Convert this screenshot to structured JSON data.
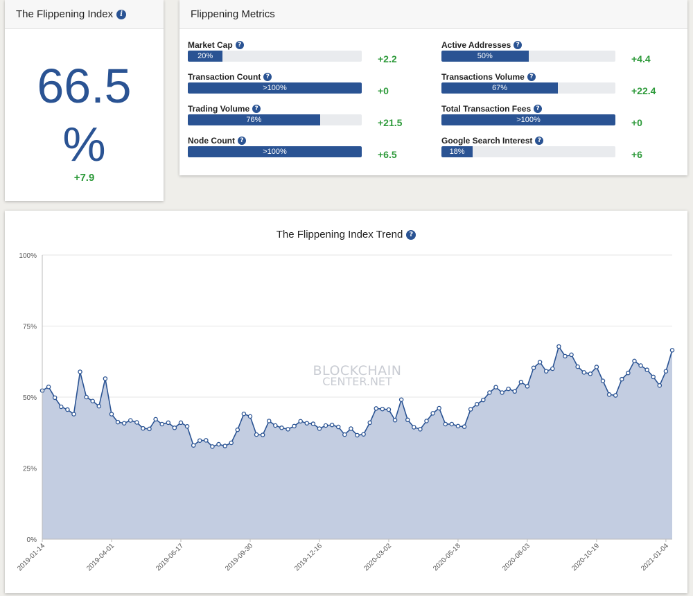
{
  "index_card": {
    "title": "The Flippening Index",
    "value": "66.5",
    "unit": "%",
    "change": "+7.9"
  },
  "metrics_card": {
    "title": "Flippening Metrics",
    "metrics": [
      {
        "label": "Market Cap",
        "bar_text": "20%",
        "fill": 0.2,
        "change": "+2.2"
      },
      {
        "label": "Transaction Count",
        "bar_text": ">100%",
        "fill": 1.0,
        "change": "+0"
      },
      {
        "label": "Trading Volume",
        "bar_text": "76%",
        "fill": 0.76,
        "change": "+21.5"
      },
      {
        "label": "Node Count",
        "bar_text": ">100%",
        "fill": 1.0,
        "change": "+6.5"
      },
      {
        "label": "Active Addresses",
        "bar_text": "50%",
        "fill": 0.5,
        "change": "+4.4"
      },
      {
        "label": "Transactions Volume",
        "bar_text": "67%",
        "fill": 0.67,
        "change": "+22.4"
      },
      {
        "label": "Total Transaction Fees",
        "bar_text": ">100%",
        "fill": 1.0,
        "change": "+0"
      },
      {
        "label": "Google Search Interest",
        "bar_text": "18%",
        "fill": 0.18,
        "change": "+6"
      }
    ]
  },
  "trend_card": {
    "watermark_line1": "BLOCKCHAIN",
    "watermark_line2": "CENTER.NET"
  },
  "colors": {
    "accent": "#2a5393",
    "positive": "#2d9a3a",
    "area_fill": "#c3cde1"
  },
  "chart_data": {
    "type": "area",
    "title": "The Flippening Index Trend",
    "xlabel": "",
    "ylabel": "",
    "ylim": [
      0,
      100
    ],
    "y_ticks": [
      "0%",
      "25%",
      "50%",
      "75%",
      "100%"
    ],
    "x_tick_labels": [
      "2019-01-14",
      "2019-04-01",
      "2019-06-17",
      "2019-09-30",
      "2019-12-16",
      "2020-03-02",
      "2020-05-18",
      "2020-08-03",
      "2020-10-19",
      "2021-01-04"
    ],
    "x_tick_indices": [
      0,
      11,
      22,
      33,
      44,
      55,
      66,
      77,
      88,
      99
    ],
    "grid": true,
    "series": [
      {
        "values": [
          52.3,
          53.6,
          49.8,
          46.6,
          45.6,
          44.0,
          58.9,
          50.0,
          48.6,
          46.8,
          56.5,
          44.0,
          41.2,
          40.8,
          41.8,
          41.1,
          39.0,
          38.8,
          42.2,
          40.5,
          41.0,
          39.2,
          41.0,
          39.7,
          33.0,
          34.7,
          34.8,
          32.6,
          33.4,
          32.8,
          33.9,
          38.5,
          44.1,
          43.2,
          36.8,
          36.7,
          41.6,
          40.0,
          39.2,
          38.7,
          39.8,
          41.5,
          40.8,
          40.6,
          38.9,
          40.0,
          40.2,
          39.5,
          36.8,
          38.9,
          36.6,
          36.9,
          41.0,
          46.0,
          45.8,
          45.6,
          41.9,
          49.1,
          42.0,
          39.4,
          38.7,
          41.6,
          44.3,
          46.1,
          40.5,
          40.5,
          39.8,
          39.6,
          45.7,
          47.5,
          49.0,
          51.6,
          53.5,
          51.6,
          52.9,
          52.0,
          55.3,
          53.8,
          60.3,
          62.3,
          59.1,
          60.0,
          67.8,
          64.4,
          64.9,
          60.7,
          58.7,
          58.2,
          60.6,
          55.7,
          50.9,
          50.6,
          56.3,
          58.5,
          62.7,
          61.1,
          59.6,
          57.1,
          54.1,
          59.1,
          66.5
        ]
      }
    ]
  }
}
